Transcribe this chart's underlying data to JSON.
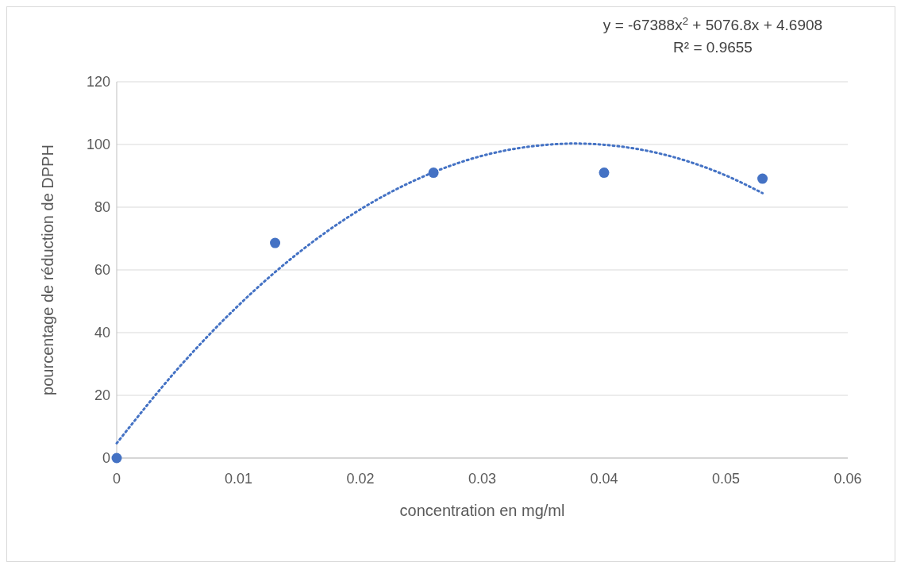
{
  "chart_data": {
    "type": "scatter",
    "xlabel": "concentration en mg/ml",
    "ylabel": "pourcentage de réduction de DPPH",
    "annotations": [
      "y = -67388x$^{2}$ + 5076.8x + 4.6908",
      "R² = 0.9655"
    ],
    "xlim": [
      0,
      0.06
    ],
    "xticks": [
      0,
      0.01,
      0.02,
      0.03,
      0.04,
      0.05,
      0.06
    ],
    "ylim": [
      0,
      120
    ],
    "yticks": [
      0,
      20,
      40,
      60,
      80,
      100,
      120
    ],
    "grid": "y",
    "series": [
      {
        "color": "#4472c4",
        "marker": "circle",
        "x": [
          0,
          0.013,
          0.026,
          0.04,
          0.053
        ],
        "values": [
          0,
          68.6,
          91,
          91,
          89.1
        ]
      },
      {
        "type": "line",
        "color": "#4472c4",
        "line_style": "dotted",
        "marker": "none",
        "x": [
          0,
          0.005,
          0.01,
          0.015,
          0.02,
          0.025,
          0.03,
          0.035,
          0.0375,
          0.04,
          0.045,
          0.05,
          0.053
        ],
        "values": [
          4.7,
          28.4,
          48.7,
          65.7,
          79.3,
          89.5,
          96.4,
          99.8,
          100.3,
          99.9,
          96.7,
          90.1,
          84.5
        ]
      }
    ]
  }
}
